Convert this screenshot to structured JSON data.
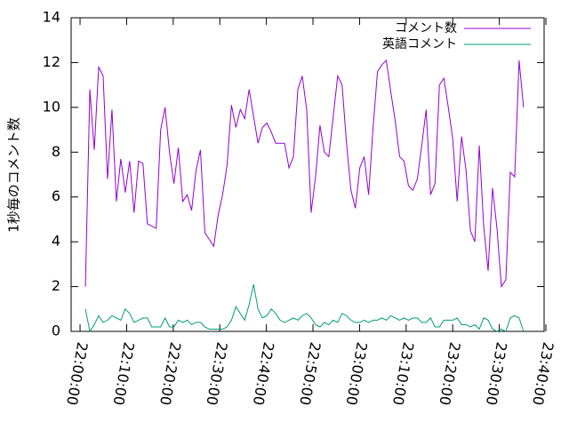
{
  "chart_data": {
    "type": "line",
    "y_label": "1秒毎のコメント数",
    "x": [
      "22:01:09",
      "22:02:06",
      "22:03:03",
      "22:04:00",
      "22:04:57",
      "22:05:54",
      "22:06:51",
      "22:07:48",
      "22:08:45",
      "22:09:42",
      "22:10:39",
      "22:11:36",
      "22:12:33",
      "22:13:30",
      "22:14:27",
      "22:15:24",
      "22:16:21",
      "22:17:18",
      "22:18:15",
      "22:19:12",
      "22:20:09",
      "22:21:06",
      "22:22:03",
      "22:23:00",
      "22:23:57",
      "22:24:54",
      "22:25:51",
      "22:26:48",
      "22:27:45",
      "22:28:42",
      "22:29:39",
      "22:30:36",
      "22:31:33",
      "22:32:30",
      "22:33:27",
      "22:34:24",
      "22:35:21",
      "22:36:18",
      "22:37:15",
      "22:38:12",
      "22:39:09",
      "22:40:06",
      "22:41:03",
      "22:42:00",
      "22:42:57",
      "22:43:54",
      "22:44:51",
      "22:45:48",
      "22:46:45",
      "22:47:42",
      "22:48:39",
      "22:49:36",
      "22:50:33",
      "22:51:30",
      "22:52:27",
      "22:53:24",
      "22:54:21",
      "22:55:18",
      "22:56:15",
      "22:57:12",
      "22:58:09",
      "22:59:06",
      "23:00:03",
      "23:01:00",
      "23:01:57",
      "23:02:54",
      "23:03:51",
      "23:04:48",
      "23:05:45",
      "23:06:42",
      "23:07:39",
      "23:08:36",
      "23:09:33",
      "23:10:30",
      "23:11:27",
      "23:12:24",
      "23:13:21",
      "23:14:18",
      "23:15:15",
      "23:16:12",
      "23:17:09",
      "23:18:06",
      "23:19:03",
      "23:20:00",
      "23:20:57",
      "23:21:54",
      "23:22:51",
      "23:23:48",
      "23:24:45",
      "23:25:42",
      "23:26:39",
      "23:27:36",
      "23:28:33",
      "23:29:30",
      "23:30:27",
      "23:31:24",
      "23:32:21",
      "23:33:18",
      "23:34:15",
      "23:35:12"
    ],
    "series": [
      {
        "name": "コメント数",
        "color": "#9400d3",
        "values": [
          2.0,
          10.8,
          8.1,
          11.8,
          11.4,
          6.8,
          9.9,
          5.8,
          7.7,
          6.2,
          7.6,
          5.3,
          7.6,
          7.5,
          4.8,
          4.7,
          4.6,
          9.0,
          10.0,
          8.0,
          6.6,
          8.2,
          5.8,
          6.1,
          5.4,
          7.2,
          8.1,
          4.4,
          4.1,
          3.8,
          5.2,
          6.1,
          7.4,
          10.1,
          9.1,
          9.9,
          9.5,
          10.8,
          9.6,
          8.4,
          9.1,
          9.3,
          8.9,
          8.4,
          8.4,
          8.4,
          7.3,
          7.8,
          10.8,
          11.4,
          9.9,
          5.3,
          6.9,
          9.2,
          8.0,
          7.8,
          9.6,
          11.4,
          11.0,
          8.4,
          6.3,
          5.5,
          7.3,
          7.8,
          6.1,
          9.1,
          11.6,
          11.9,
          12.1,
          10.7,
          9.4,
          7.8,
          7.6,
          6.5,
          6.3,
          6.8,
          8.3,
          9.9,
          6.1,
          6.6,
          11.0,
          11.3,
          10.0,
          8.6,
          5.8,
          8.7,
          7.2,
          4.5,
          4.0,
          8.3,
          4.7,
          2.7,
          6.4,
          4.6,
          2.0,
          2.3,
          7.1,
          6.9,
          12.1,
          10.0
        ]
      },
      {
        "name": "英語コメント",
        "color": "#009e73",
        "values": [
          1.0,
          0.0,
          0.3,
          0.7,
          0.4,
          0.5,
          0.7,
          0.6,
          0.5,
          1.0,
          0.8,
          0.4,
          0.5,
          0.6,
          0.6,
          0.2,
          0.2,
          0.2,
          0.6,
          0.2,
          0.2,
          0.5,
          0.4,
          0.5,
          0.3,
          0.4,
          0.4,
          0.2,
          0.1,
          0.1,
          0.1,
          0.1,
          0.2,
          0.5,
          1.1,
          0.8,
          0.5,
          1.2,
          2.1,
          1.0,
          0.6,
          0.7,
          1.0,
          0.8,
          0.5,
          0.4,
          0.5,
          0.6,
          0.5,
          0.7,
          0.8,
          0.6,
          0.3,
          0.2,
          0.4,
          0.3,
          0.5,
          0.4,
          0.8,
          0.7,
          0.5,
          0.4,
          0.4,
          0.5,
          0.4,
          0.5,
          0.5,
          0.6,
          0.5,
          0.7,
          0.6,
          0.5,
          0.6,
          0.5,
          0.6,
          0.6,
          0.4,
          0.4,
          0.6,
          0.2,
          0.2,
          0.5,
          0.5,
          0.5,
          0.6,
          0.3,
          0.3,
          0.2,
          0.3,
          0.1,
          0.6,
          0.5,
          0.1,
          0.0,
          0.1,
          0.0,
          0.6,
          0.7,
          0.6,
          0.0
        ]
      }
    ],
    "xlim": [
      "21:58:05",
      "23:39:37"
    ],
    "xticks": [
      "22:00:00",
      "22:10:00",
      "22:20:00",
      "22:30:00",
      "22:40:00",
      "22:50:00",
      "23:00:00",
      "23:10:00",
      "23:20:00",
      "23:30:00",
      "23:40:00"
    ],
    "ylim": [
      0,
      14
    ],
    "yticks": [
      0,
      2,
      4,
      6,
      8,
      10,
      12,
      14
    ],
    "legend": "top-right"
  }
}
